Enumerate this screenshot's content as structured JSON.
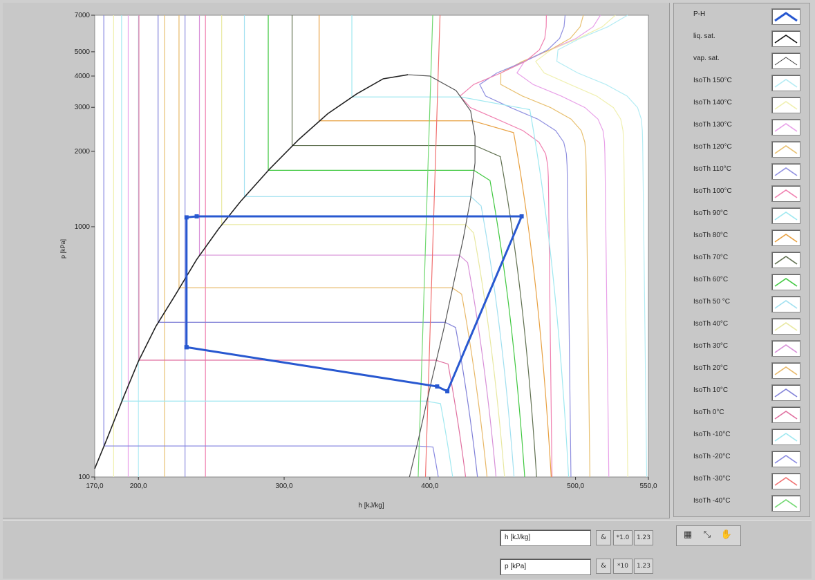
{
  "colors": {
    "cycle": "#2858d0",
    "saturation_liq": "#222222",
    "saturation_vap": "#555555",
    "plot_bg": "#ffffff",
    "panel_bg": "#c8c8c8"
  },
  "chart_data": {
    "type": "line",
    "xlabel": "h [kJ/kg]",
    "ylabel": "p [kPa]",
    "xlim": [
      170,
      550
    ],
    "ylim": [
      100,
      7000
    ],
    "yscale": "log",
    "x_ticks": [
      {
        "value": 170,
        "label": "170,0"
      },
      {
        "value": 200,
        "label": "200,0"
      },
      {
        "value": 300,
        "label": "300,0"
      },
      {
        "value": 400,
        "label": "400,0"
      },
      {
        "value": 500,
        "label": "500,0"
      },
      {
        "value": 550,
        "label": "550,0"
      }
    ],
    "y_ticks": [
      {
        "value": 100,
        "label": "100"
      },
      {
        "value": 1000,
        "label": "1000"
      },
      {
        "value": 2000,
        "label": "2000"
      },
      {
        "value": 3000,
        "label": "3000"
      },
      {
        "value": 4000,
        "label": "4000"
      },
      {
        "value": 5000,
        "label": "5000"
      },
      {
        "value": 7000,
        "label": "7000"
      }
    ],
    "critical_point": {
      "h": 385,
      "p": 4050
    },
    "saturation": {
      "liquid": {
        "name": "liq. sat.",
        "h": [
          170,
          178,
          190,
          200,
          212,
          225,
          240,
          255,
          270,
          290,
          310,
          330,
          350,
          368,
          385
        ],
        "p": [
          108,
          140,
          210,
          290,
          400,
          530,
          740,
          980,
          1260,
          1700,
          2230,
          2830,
          3400,
          3900,
          4050
        ]
      },
      "vapor": {
        "name": "vap. sat.",
        "h": [
          385,
          400,
          418,
          428,
          431,
          431,
          428,
          423,
          417,
          410,
          401,
          392,
          386
        ],
        "p": [
          4050,
          4000,
          3500,
          2900,
          2300,
          1800,
          1300,
          900,
          620,
          400,
          240,
          140,
          100
        ]
      }
    },
    "cycle": {
      "name": "P-H",
      "h": [
        233,
        233,
        240,
        463,
        412,
        405,
        233
      ],
      "p": [
        330,
        1090,
        1100,
        1100,
        220,
        230,
        330
      ]
    },
    "isotherms": [
      {
        "name": "IsoTh 150°C",
        "color": "#b4ecf4",
        "p_sat": null,
        "h_l": 200,
        "h_v": 545,
        "asym": 4800
      },
      {
        "name": "IsoTh 140°C",
        "color": "#f0f0b0",
        "p_sat": null,
        "h_l": 183,
        "h_v": 532,
        "asym": 4500
      },
      {
        "name": "IsoTh 130°C",
        "color": "#e8a0e8",
        "p_sat": null,
        "h_l": 193,
        "h_v": 519,
        "asym": 4200
      },
      {
        "name": "IsoTh 120°C",
        "color": "#e8c070",
        "p_sat": null,
        "h_l": 218,
        "h_v": 506,
        "asym": 3900
      },
      {
        "name": "IsoTh 110°C",
        "color": "#9090e0",
        "p_sat": null,
        "h_l": 232,
        "h_v": 493,
        "asym": 3600
      },
      {
        "name": "IsoTh 100°C",
        "color": "#f080b0",
        "p_sat": null,
        "h_l": 246,
        "h_v": 480,
        "asym": 3300
      },
      {
        "name": "IsoTh 90°C",
        "color": "#9ee8f0",
        "p_sat": 3300,
        "h_l": 0,
        "h_v": 467,
        "asym": 3000
      },
      {
        "name": "IsoTh 80°C",
        "color": "#e8a040",
        "p_sat": 2650,
        "h_l": 0,
        "h_v": 456,
        "asym": 2600
      },
      {
        "name": "IsoTh 70°C",
        "color": "#607050",
        "p_sat": 2110,
        "h_l": 0,
        "h_v": 447,
        "asym": 2100
      },
      {
        "name": "IsoTh 60°C",
        "color": "#40c840",
        "p_sat": 1680,
        "h_l": 0,
        "h_v": 440,
        "asym": 1700
      },
      {
        "name": "IsoTh 50 °C",
        "color": "#a0e0f0",
        "p_sat": 1320,
        "h_l": 0,
        "h_v": 434,
        "asym": 1300
      },
      {
        "name": "IsoTh 40°C",
        "color": "#e8e8a0",
        "p_sat": 1020,
        "h_l": 0,
        "h_v": 429,
        "asym": 1000
      },
      {
        "name": "IsoTh 30°C",
        "color": "#d890d8",
        "p_sat": 770,
        "h_l": 0,
        "h_v": 425,
        "asym": 780
      },
      {
        "name": "IsoTh 20°C",
        "color": "#e8b868",
        "p_sat": 570,
        "h_l": 0,
        "h_v": 421,
        "asym": 580
      },
      {
        "name": "IsoTh 10°C",
        "color": "#8080d8",
        "p_sat": 415,
        "h_l": 0,
        "h_v": 417,
        "asym": 420
      },
      {
        "name": "IsoTh   0°C",
        "color": "#e070a0",
        "p_sat": 293,
        "h_l": 0,
        "h_v": 412,
        "asym": 300
      },
      {
        "name": "IsoTh -10°C",
        "color": "#a0e8f0",
        "p_sat": 201,
        "h_l": 0,
        "h_v": 407,
        "asym": 205
      },
      {
        "name": "IsoTh -20°C",
        "color": "#8888e0",
        "p_sat": 133,
        "h_l": 0,
        "h_v": 402,
        "asym": 135
      },
      {
        "name": "IsoTh -30°C",
        "color": "#f07070",
        "p_sat": null,
        "h_l": 0,
        "h_v": 397,
        "asym": 90
      },
      {
        "name": "IsoTh -40°C",
        "color": "#70d870",
        "p_sat": null,
        "h_l": 0,
        "h_v": 392,
        "asym": 60
      }
    ]
  },
  "legend": {
    "items": [
      {
        "label": "P-H",
        "color": "#2858d0",
        "style": "bold"
      },
      {
        "label": "liq. sat.",
        "color": "#111111",
        "style": "normal"
      },
      {
        "label": "vap. sat.",
        "color": "#444444",
        "style": "thin"
      },
      {
        "label": "IsoTh 150°C",
        "color": "#b4ecf4"
      },
      {
        "label": "IsoTh 140°C",
        "color": "#f0f0b0"
      },
      {
        "label": "IsoTh 130°C",
        "color": "#e8a0e8"
      },
      {
        "label": "IsoTh 120°C",
        "color": "#e8c070"
      },
      {
        "label": "IsoTh 110°C",
        "color": "#9090e0"
      },
      {
        "label": "IsoTh 100°C",
        "color": "#f080b0"
      },
      {
        "label": "IsoTh  90°C",
        "color": "#9ee8f0"
      },
      {
        "label": "IsoTh  80°C",
        "color": "#e8a040"
      },
      {
        "label": "IsoTh  70°C",
        "color": "#607050"
      },
      {
        "label": "IsoTh  60°C",
        "color": "#40c840"
      },
      {
        "label": "IsoTh  50 °C",
        "color": "#a0e0f0"
      },
      {
        "label": "IsoTh  40°C",
        "color": "#e8e8a0"
      },
      {
        "label": "IsoTh  30°C",
        "color": "#d890d8"
      },
      {
        "label": "IsoTh  20°C",
        "color": "#e8b868"
      },
      {
        "label": "IsoTh  10°C",
        "color": "#8080d8"
      },
      {
        "label": "IsoTh    0°C",
        "color": "#e070a0"
      },
      {
        "label": "IsoTh -10°C",
        "color": "#a0e8f0"
      },
      {
        "label": "IsoTh -20°C",
        "color": "#8888e0"
      },
      {
        "label": "IsoTh -30°C",
        "color": "#f07070"
      },
      {
        "label": "IsoTh -40°C",
        "color": "#70d870"
      }
    ]
  },
  "scale_legend": {
    "x_field": "h [kJ/kg]",
    "y_field": "p [kPa]",
    "btn_lock": "&",
    "x_btn_autoscale": "*1.0",
    "x_btn_format": "1.23",
    "y_btn_autoscale": "*10",
    "y_btn_format": "1.23"
  },
  "graph_palette": {
    "cursor_icon": "▦",
    "zoom_icon": "⤡",
    "pan_icon": "✋"
  }
}
